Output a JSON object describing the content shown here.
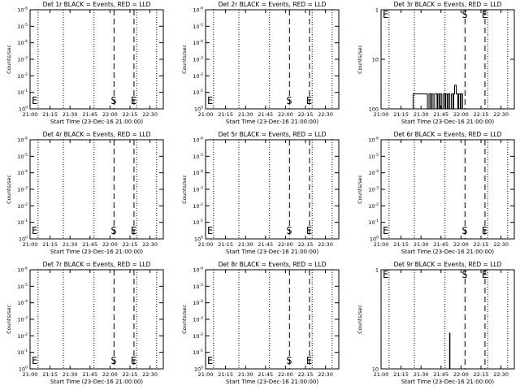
{
  "time_ticks": [
    "21:00",
    "21:15",
    "21:30",
    "21:45",
    "22:00",
    "22:15",
    "22:30"
  ],
  "x_range": [
    "21:00",
    "22:40"
  ],
  "dotted_lines": [
    "21:06",
    "21:25",
    "21:48",
    "22:20",
    "22:35"
  ],
  "dashed_lines": [
    "22:03",
    "22:18"
  ],
  "xlabel": "Start Time (23-Dec-16 21:00:00)",
  "ylabel": "Counts/sec",
  "series_colors": {
    "events": "#000000",
    "lld": "#ff0000"
  },
  "charts": [
    {
      "title": "Det 1r BLACK = Events, RED = LLD",
      "type": "line",
      "scale": "log",
      "yticks": [
        {
          "b": "10",
          "e": "0"
        },
        {
          "b": "10",
          "e": "-1"
        },
        {
          "b": "10",
          "e": "-2"
        },
        {
          "b": "10",
          "e": "-3"
        },
        {
          "b": "10",
          "e": "-4"
        },
        {
          "b": "10",
          "e": "-5"
        },
        {
          "b": "10",
          "e": "-6"
        }
      ],
      "ylim": [
        1e-06,
        1
      ],
      "markers": [
        {
          "t": "21:00",
          "label": "E"
        },
        {
          "t": "22:03",
          "label": "S"
        },
        {
          "t": "22:18",
          "label": "E"
        }
      ],
      "events": []
    },
    {
      "title": "Det 2r BLACK = Events, RED = LLD",
      "type": "line",
      "scale": "log",
      "yticks": [
        {
          "b": "10",
          "e": "0"
        },
        {
          "b": "10",
          "e": "-1"
        },
        {
          "b": "10",
          "e": "-2"
        },
        {
          "b": "10",
          "e": "-3"
        },
        {
          "b": "10",
          "e": "-4"
        },
        {
          "b": "10",
          "e": "-5"
        },
        {
          "b": "10",
          "e": "-6"
        }
      ],
      "ylim": [
        1e-06,
        1
      ],
      "markers": [
        {
          "t": "21:00",
          "label": "E"
        },
        {
          "t": "22:03",
          "label": "S"
        },
        {
          "t": "22:18",
          "label": "E"
        }
      ],
      "events": []
    },
    {
      "title": "Det 3r BLACK = Events, RED = LLD",
      "type": "line",
      "scale": "log",
      "yticks": [
        {
          "b": "100",
          "e": ""
        },
        {
          "b": "10",
          "e": ""
        },
        {
          "b": "1",
          "e": ""
        }
      ],
      "ylim": [
        1,
        100
      ],
      "markers": [
        {
          "t": "21:00",
          "label": "E"
        },
        {
          "t": "22:03",
          "label": "S"
        },
        {
          "t": "22:18",
          "label": "E"
        }
      ],
      "events": [
        [
          21.4,
          1
        ],
        [
          21.4,
          2
        ],
        [
          21.58,
          2
        ],
        [
          21.58,
          1
        ],
        [
          21.6,
          1
        ],
        [
          21.6,
          2
        ],
        [
          21.62,
          2
        ],
        [
          21.62,
          1
        ],
        [
          21.63,
          1
        ],
        [
          21.63,
          2
        ],
        [
          21.65,
          2
        ],
        [
          21.65,
          1
        ],
        [
          21.67,
          1
        ],
        [
          21.67,
          2
        ],
        [
          21.7,
          2
        ],
        [
          21.7,
          1
        ],
        [
          21.71,
          1
        ],
        [
          21.71,
          2
        ],
        [
          21.73,
          2
        ],
        [
          21.73,
          1
        ],
        [
          21.74,
          1
        ],
        [
          21.74,
          2
        ],
        [
          21.76,
          2
        ],
        [
          21.76,
          1
        ],
        [
          21.78,
          1
        ],
        [
          21.78,
          2
        ],
        [
          21.8,
          2
        ],
        [
          21.8,
          1
        ],
        [
          21.81,
          1
        ],
        [
          21.81,
          2
        ],
        [
          21.83,
          2
        ],
        [
          21.83,
          1
        ],
        [
          21.84,
          1
        ],
        [
          21.84,
          2
        ],
        [
          21.86,
          2
        ],
        [
          21.86,
          1
        ],
        [
          21.88,
          1
        ],
        [
          21.88,
          2
        ],
        [
          21.9,
          2
        ],
        [
          21.9,
          1
        ],
        [
          21.91,
          1
        ],
        [
          21.91,
          2
        ],
        [
          21.92,
          2
        ],
        [
          21.92,
          3
        ],
        [
          21.94,
          3
        ],
        [
          21.94,
          2
        ],
        [
          21.96,
          2
        ],
        [
          21.96,
          1
        ],
        [
          21.97,
          1
        ],
        [
          21.97,
          2
        ],
        [
          21.99,
          2
        ],
        [
          21.99,
          1
        ],
        [
          22.0,
          1
        ],
        [
          22.0,
          2
        ],
        [
          22.02,
          2
        ],
        [
          22.02,
          1
        ]
      ]
    },
    {
      "title": "Det 4r BLACK = Events, RED = LLD",
      "type": "line",
      "scale": "log",
      "yticks": [
        {
          "b": "10",
          "e": "0"
        },
        {
          "b": "10",
          "e": "-1"
        },
        {
          "b": "10",
          "e": "-2"
        },
        {
          "b": "10",
          "e": "-3"
        },
        {
          "b": "10",
          "e": "-4"
        },
        {
          "b": "10",
          "e": "-5"
        },
        {
          "b": "10",
          "e": "-6"
        }
      ],
      "ylim": [
        1e-06,
        1
      ],
      "markers": [
        {
          "t": "21:00",
          "label": "E"
        },
        {
          "t": "22:03",
          "label": "S"
        },
        {
          "t": "22:18",
          "label": "E"
        }
      ],
      "events": []
    },
    {
      "title": "Det 5r BLACK = Events, RED = LLD",
      "type": "line",
      "scale": "log",
      "yticks": [
        {
          "b": "10",
          "e": "0"
        },
        {
          "b": "10",
          "e": "-1"
        },
        {
          "b": "10",
          "e": "-2"
        },
        {
          "b": "10",
          "e": "-3"
        },
        {
          "b": "10",
          "e": "-4"
        },
        {
          "b": "10",
          "e": "-5"
        },
        {
          "b": "10",
          "e": "-6"
        }
      ],
      "ylim": [
        1e-06,
        1
      ],
      "markers": [
        {
          "t": "21:00",
          "label": "E"
        },
        {
          "t": "22:03",
          "label": "S"
        },
        {
          "t": "22:18",
          "label": "E"
        }
      ],
      "events": []
    },
    {
      "title": "Det 6r BLACK = Events, RED = LLD",
      "type": "line",
      "scale": "log",
      "yticks": [
        {
          "b": "10",
          "e": "0"
        },
        {
          "b": "10",
          "e": "-1"
        },
        {
          "b": "10",
          "e": "-2"
        },
        {
          "b": "10",
          "e": "-3"
        },
        {
          "b": "10",
          "e": "-4"
        },
        {
          "b": "10",
          "e": "-5"
        },
        {
          "b": "10",
          "e": "-6"
        }
      ],
      "ylim": [
        1e-06,
        1
      ],
      "markers": [
        {
          "t": "21:00",
          "label": "E"
        },
        {
          "t": "22:03",
          "label": "S"
        },
        {
          "t": "22:18",
          "label": "E"
        }
      ],
      "events": []
    },
    {
      "title": "Det 7r BLACK = Events, RED = LLD",
      "type": "line",
      "scale": "log",
      "yticks": [
        {
          "b": "10",
          "e": "0"
        },
        {
          "b": "10",
          "e": "-1"
        },
        {
          "b": "10",
          "e": "-2"
        },
        {
          "b": "10",
          "e": "-3"
        },
        {
          "b": "10",
          "e": "-4"
        },
        {
          "b": "10",
          "e": "-5"
        },
        {
          "b": "10",
          "e": "-6"
        }
      ],
      "ylim": [
        1e-06,
        1
      ],
      "markers": [
        {
          "t": "21:00",
          "label": "E"
        },
        {
          "t": "22:03",
          "label": "S"
        },
        {
          "t": "22:18",
          "label": "E"
        }
      ],
      "events": []
    },
    {
      "title": "Det 8r BLACK = Events, RED = LLD",
      "type": "line",
      "scale": "log",
      "yticks": [
        {
          "b": "10",
          "e": "0"
        },
        {
          "b": "10",
          "e": "-1"
        },
        {
          "b": "10",
          "e": "-2"
        },
        {
          "b": "10",
          "e": "-3"
        },
        {
          "b": "10",
          "e": "-4"
        },
        {
          "b": "10",
          "e": "-5"
        },
        {
          "b": "10",
          "e": "-6"
        }
      ],
      "ylim": [
        1e-06,
        1
      ],
      "markers": [
        {
          "t": "21:00",
          "label": "E"
        },
        {
          "t": "22:03",
          "label": "S"
        },
        {
          "t": "22:18",
          "label": "E"
        }
      ],
      "events": []
    },
    {
      "title": "Det 9r BLACK = Events, RED = LLD",
      "type": "line",
      "scale": "log",
      "yticks": [
        {
          "b": "10",
          "e": ""
        },
        {
          "b": "1",
          "e": ""
        }
      ],
      "ylim": [
        1,
        10
      ],
      "markers": [
        {
          "t": "21:00",
          "label": "E"
        },
        {
          "t": "22:03",
          "label": "S"
        },
        {
          "t": "22:18",
          "label": "E"
        }
      ],
      "events": [
        [
          21.857,
          1
        ],
        [
          21.857,
          2.3
        ],
        [
          21.862,
          2.3
        ],
        [
          21.862,
          1
        ]
      ]
    }
  ]
}
